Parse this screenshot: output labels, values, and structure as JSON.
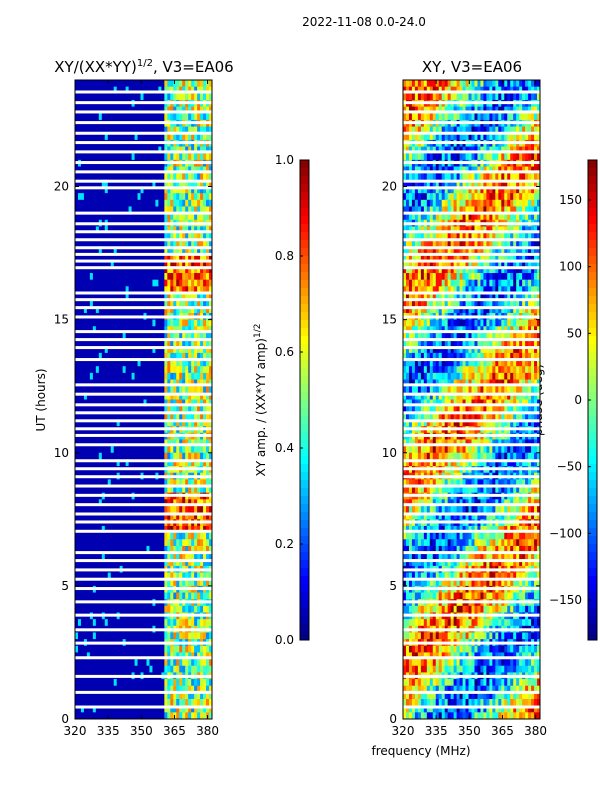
{
  "figure_title": "2022-11-08 0.0-24.0",
  "chart_data": [
    {
      "type": "heatmap",
      "title_main": "XY/(XX*YY)",
      "title_sup": "1/2",
      "title_rest": ", V3=EA06",
      "xlabel": "",
      "ylabel": "UT (hours)",
      "xlim": [
        320,
        382
      ],
      "ylim": [
        0,
        24
      ],
      "xticks": [
        320,
        335,
        350,
        365,
        380
      ],
      "yticks": [
        0,
        5,
        10,
        15,
        20
      ],
      "colorbar": {
        "label": "XY amp. / (XX*YY amp)",
        "label_sup": "1/2",
        "range": [
          0.0,
          1.0
        ],
        "ticks": [
          "0.0",
          "0.2",
          "0.4",
          "0.6",
          "0.8",
          "1.0"
        ],
        "tick_values": [
          0.0,
          0.2,
          0.4,
          0.6,
          0.8,
          1.0
        ],
        "colormap": "jet"
      },
      "low_band_value": 0.05,
      "high_band_start_mhz": 361,
      "high_band_value_range": [
        0.25,
        0.9
      ],
      "flagged_rows_ut": [
        0.45,
        1.0,
        1.6,
        2.3,
        2.85,
        3.35,
        3.9,
        4.4,
        4.9,
        5.25,
        5.6,
        5.95,
        6.25,
        7.05,
        7.4,
        7.7,
        8.05,
        8.4,
        8.75,
        9.1,
        9.4,
        9.7,
        10.3,
        10.65,
        10.9,
        11.2,
        11.5,
        11.8,
        12.2,
        12.55,
        13.5,
        13.95,
        14.25,
        14.55,
        15.1,
        15.45,
        15.75,
        16.0,
        16.95,
        17.2,
        17.45,
        17.7,
        18.0,
        18.3,
        18.6,
        19.0,
        19.95,
        20.2,
        20.55,
        20.9,
        21.3,
        21.65,
        22.0,
        22.4,
        22.8,
        23.15,
        23.55
      ]
    },
    {
      "type": "heatmap",
      "title": "XY, V3=EA06",
      "xlabel": "frequency (MHz)",
      "ylabel": "",
      "xlim": [
        320,
        382
      ],
      "ylim": [
        0,
        24
      ],
      "xticks": [
        320,
        335,
        350,
        365,
        380
      ],
      "yticks": [
        0,
        5,
        10,
        15,
        20
      ],
      "colorbar": {
        "label": "phase (deg)",
        "range": [
          -180,
          180
        ],
        "ticks": [
          "−150",
          "−100",
          "−50",
          "0",
          "50",
          "100",
          "150"
        ],
        "tick_values": [
          -150,
          -100,
          -50,
          0,
          50,
          100,
          150
        ],
        "colormap": "jet"
      },
      "value_range": [
        -180,
        180
      ],
      "flagged_rows_ut": [
        0.45,
        1.0,
        1.6,
        2.3,
        2.85,
        3.35,
        3.9,
        4.4,
        4.9,
        5.25,
        5.6,
        5.95,
        6.25,
        7.05,
        7.4,
        7.7,
        8.05,
        8.4,
        8.75,
        9.1,
        9.4,
        9.7,
        10.3,
        10.65,
        10.9,
        11.2,
        11.5,
        11.8,
        12.2,
        12.55,
        13.5,
        13.95,
        14.25,
        14.55,
        15.1,
        15.45,
        15.75,
        16.0,
        16.95,
        17.2,
        17.45,
        17.7,
        18.0,
        18.3,
        18.6,
        19.0,
        19.95,
        20.2,
        20.55,
        20.9,
        21.3,
        21.65,
        22.0,
        22.4,
        22.8,
        23.15,
        23.55
      ]
    }
  ]
}
